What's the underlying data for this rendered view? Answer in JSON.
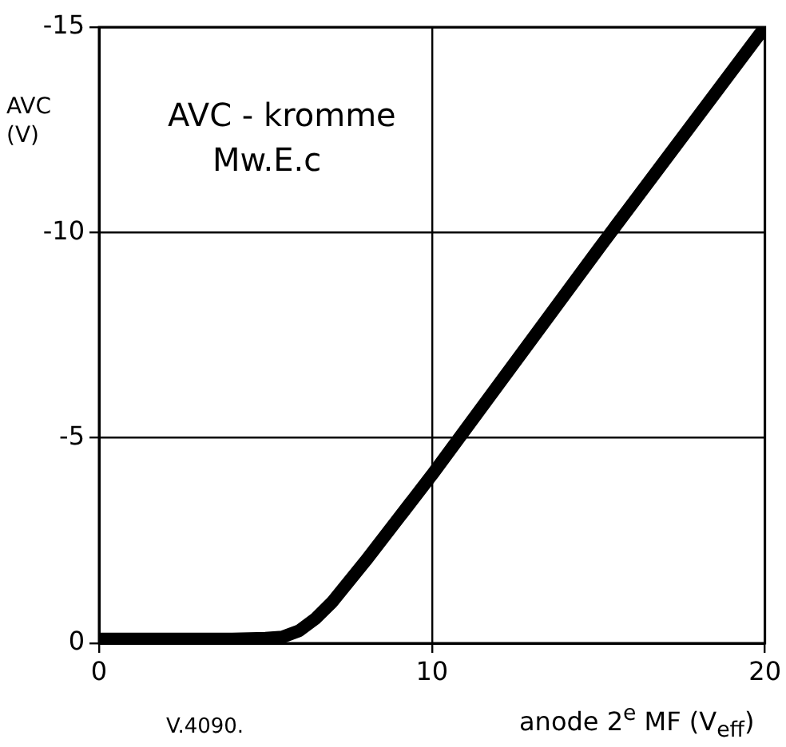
{
  "chart_data": {
    "type": "line",
    "title": "AVC - kromme",
    "subtitle": "Mw.E.c",
    "xlabel": "anode 2$^{e}$ MF (V$_{eff}$)",
    "ylabel": "AVC (V)",
    "annotations": [
      "V.4090."
    ],
    "series": [
      {
        "color": "#000000",
        "x": [
          0,
          2,
          4,
          5,
          5.5,
          6,
          6.5,
          7,
          7.5,
          8,
          10,
          15,
          20
        ],
        "values": [
          -0.1,
          -0.1,
          -0.1,
          -0.12,
          -0.15,
          -0.3,
          -0.6,
          -1.0,
          -1.5,
          -2.0,
          -4.1,
          -9.6,
          -15
        ]
      }
    ],
    "xlim": [
      0,
      20
    ],
    "xticks": [
      0,
      10,
      20
    ],
    "ylim": [
      0,
      -15
    ],
    "yticks": [
      0,
      -5,
      -10,
      -15
    ],
    "grid": true,
    "legend": false,
    "marker": "none",
    "line_style": "solid"
  }
}
